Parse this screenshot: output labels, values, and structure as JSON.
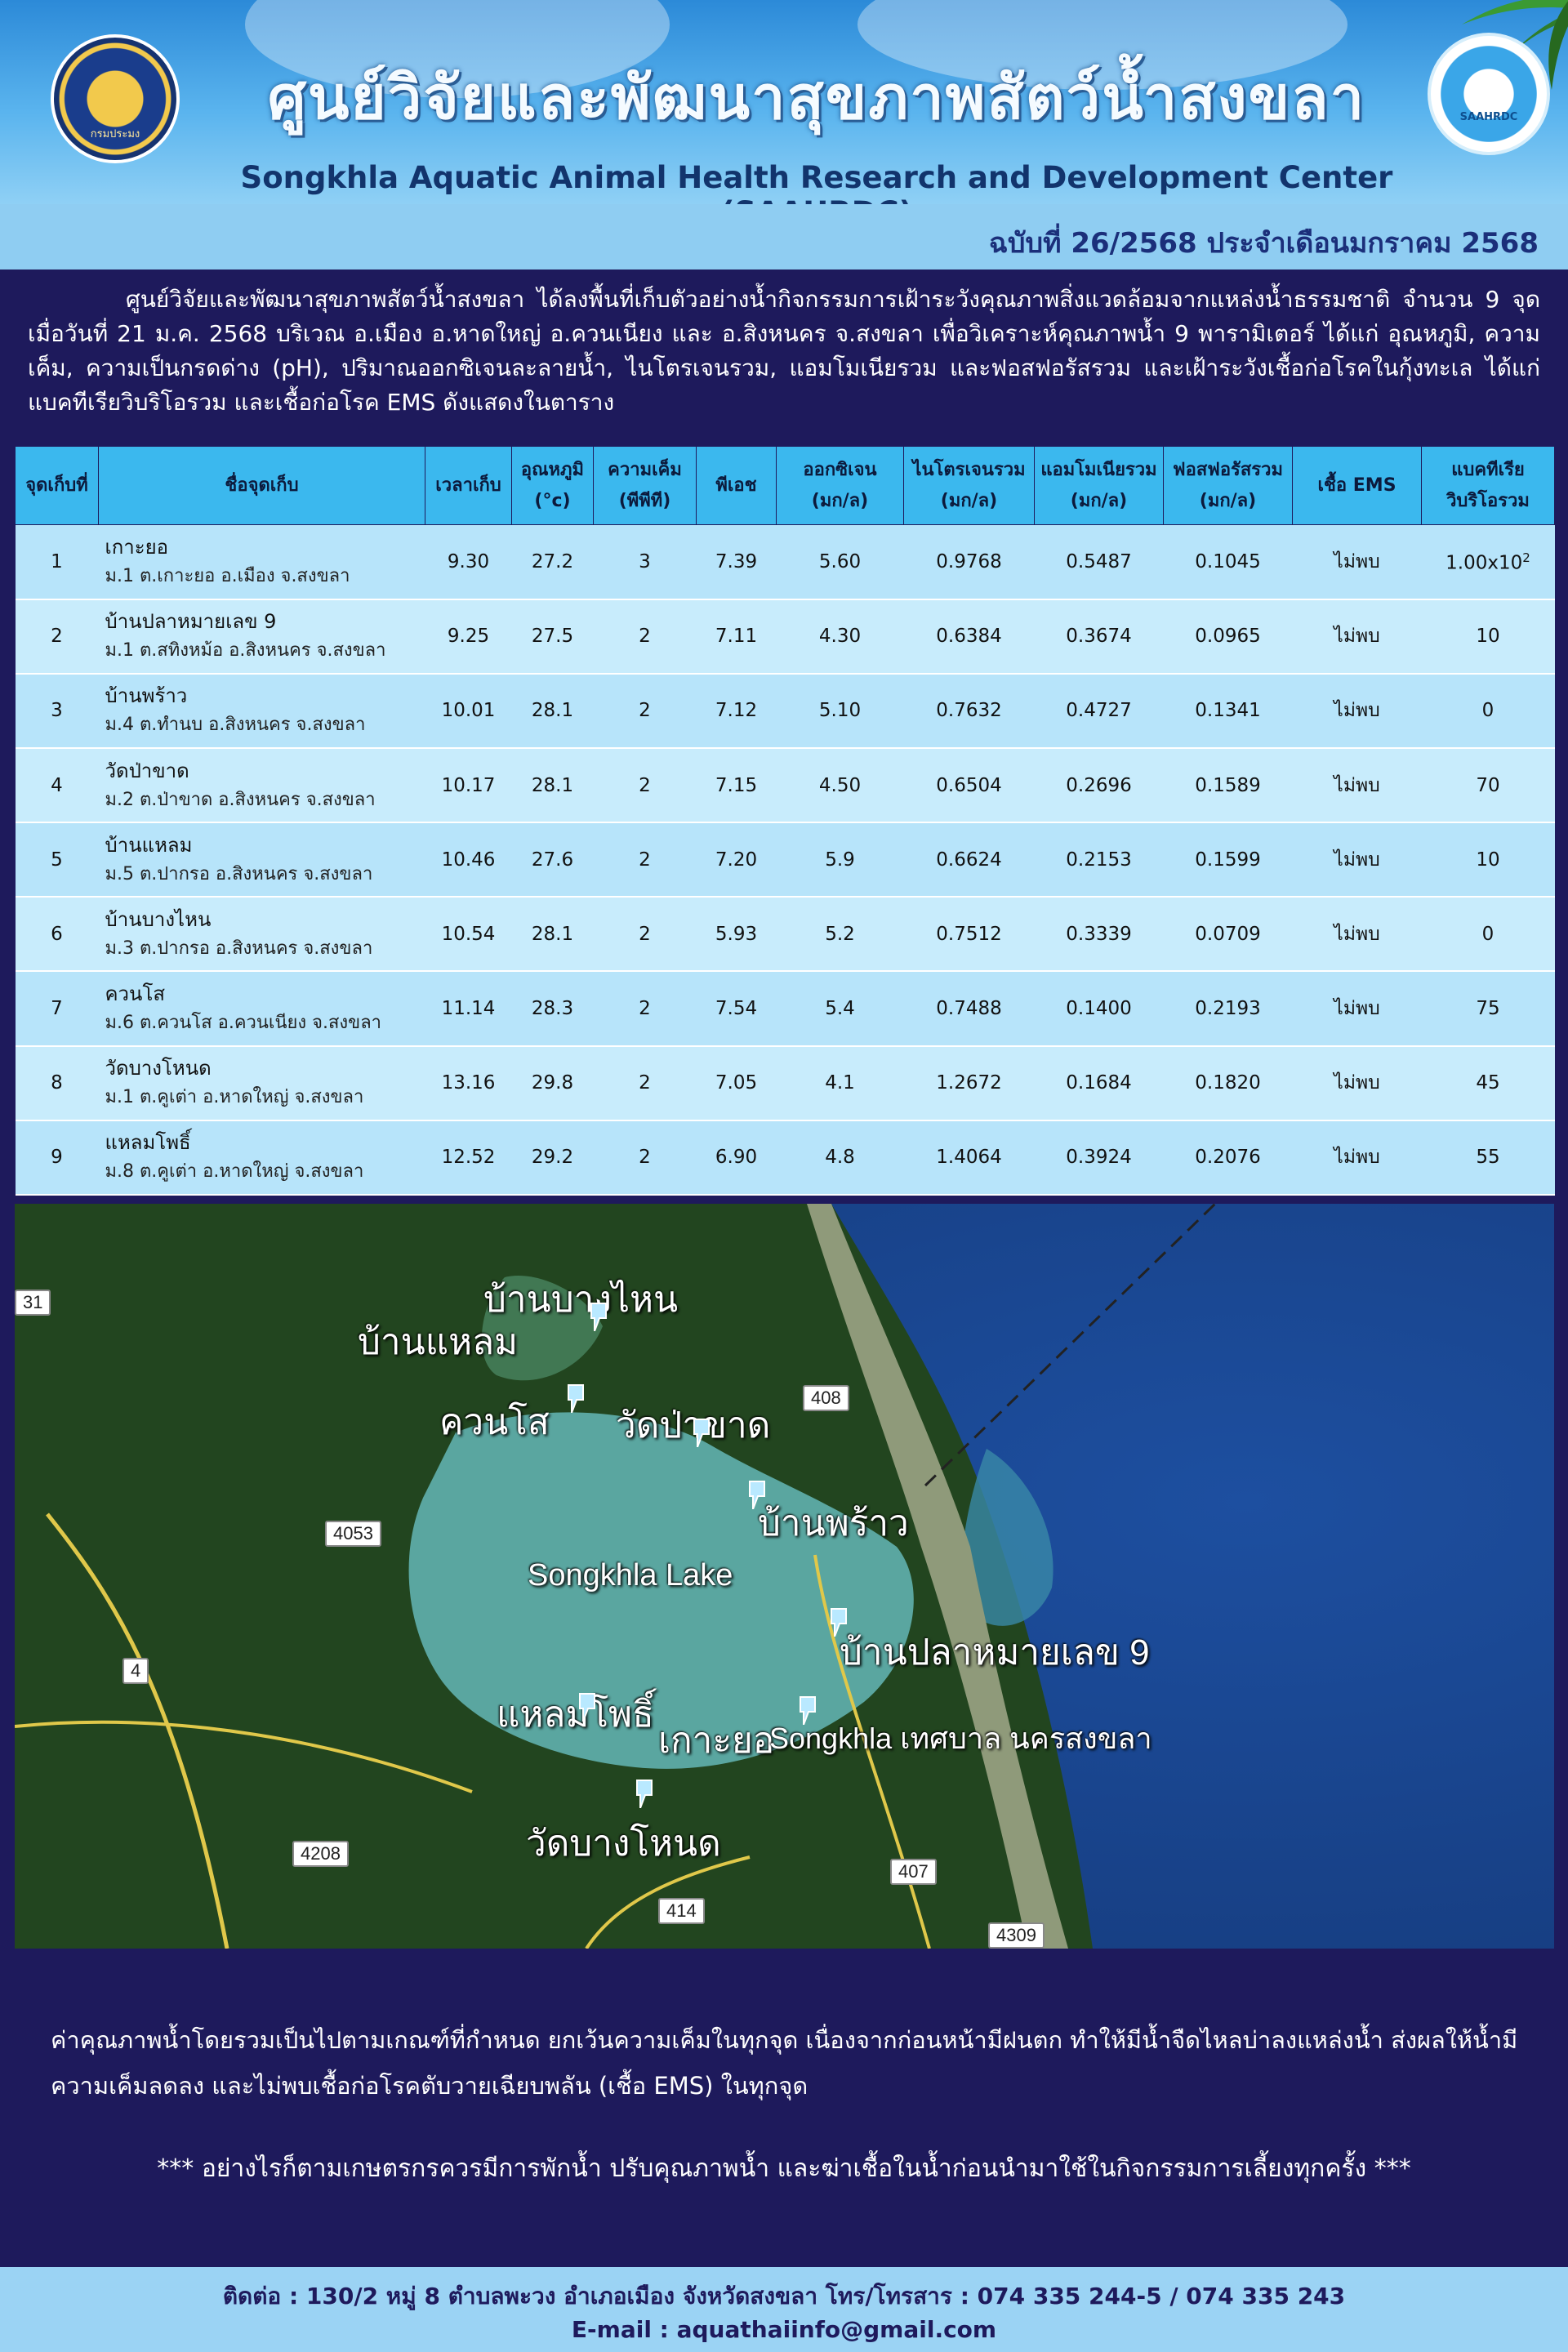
{
  "header": {
    "title_th": "ศูนย์วิจัยและพัฒนาสุขภาพสัตว์น้ำสงขลา",
    "title_en": "Songkhla Aquatic Animal Health Research and Development Center (SAAHRDC)",
    "logo_left_text": "กรมประมง",
    "logo_right_text": "SAAHRDC"
  },
  "issue": "ฉบับที่ 26/2568 ประจำเดือนมกราคม 2568",
  "intro": "ศูนย์วิจัยและพัฒนาสุขภาพสัตว์น้ำสงขลา ได้ลงพื้นที่เก็บตัวอย่างน้ำกิจกรรมการเฝ้าระวังคุณภาพสิ่งแวดล้อมจากแหล่งน้ำธรรมชาติ จำนวน 9 จุด เมื่อวันที่ 21 ม.ค. 2568 บริเวณ อ.เมือง อ.หาดใหญ่ อ.ควนเนียง และ อ.สิงหนคร จ.สงขลา เพื่อวิเคราะห์คุณภาพน้ำ 9 พารามิเตอร์ ได้แก่ อุณหภูมิ, ความเค็ม, ความเป็นกรดด่าง (pH), ปริมาณออกซิเจนละลายน้ำ, ไนโตรเจนรวม, แอมโมเนียรวม และฟอสฟอรัสรวม และเฝ้าระวังเชื้อก่อโรคในกุ้งทะเล ได้แก่ แบคทีเรียวิบริโอรวม  และเชื้อก่อโรค EMS ดังแสดงในตาราง",
  "table": {
    "headers": {
      "point": "จุดเก็บที่",
      "name": "ชื่อจุดเก็บ",
      "time": "เวลาเก็บ",
      "temp_1": "อุณหภูมิ",
      "temp_2": "(°c)",
      "sal_1": "ความเค็ม",
      "sal_2": "(พีพีที)",
      "ph": "พีเอช",
      "do_1": "ออกซิเจน",
      "do_2": "(มก/ล)",
      "tn_1": "ไนโตรเจนรวม",
      "tn_2": "(มก/ล)",
      "nh3_1": "แอมโมเนียรวม",
      "nh3_2": "(มก/ล)",
      "tp_1": "ฟอสฟอรัสรวม",
      "tp_2": "(มก/ล)",
      "ems": "เชื้อ EMS",
      "vib_1": "แบคทีเรีย",
      "vib_2": "วิบริโอรวม"
    },
    "rows": [
      {
        "no": "1",
        "name": "เกาะยอ",
        "addr": "ม.1 ต.เกาะยอ อ.เมือง จ.สงขลา",
        "time": "9.30",
        "temp": "27.2",
        "sal": "3",
        "ph": "7.39",
        "do": "5.60",
        "tn": "0.9768",
        "nh3": "0.5487",
        "tp": "0.1045",
        "ems": "ไม่พบ",
        "vib": "1.00x10",
        "vib_sup": "2"
      },
      {
        "no": "2",
        "name": "บ้านปลาหมายเลข 9",
        "addr": "ม.1 ต.สทิงหม้อ อ.สิงหนคร จ.สงขลา",
        "time": "9.25",
        "temp": "27.5",
        "sal": "2",
        "ph": "7.11",
        "do": "4.30",
        "tn": "0.6384",
        "nh3": "0.3674",
        "tp": "0.0965",
        "ems": "ไม่พบ",
        "vib": "10",
        "vib_sup": ""
      },
      {
        "no": "3",
        "name": "บ้านพร้าว",
        "addr": "ม.4 ต.ทำนบ อ.สิงหนคร จ.สงขลา",
        "time": "10.01",
        "temp": "28.1",
        "sal": "2",
        "ph": "7.12",
        "do": "5.10",
        "tn": "0.7632",
        "nh3": "0.4727",
        "tp": "0.1341",
        "ems": "ไม่พบ",
        "vib": "0",
        "vib_sup": ""
      },
      {
        "no": "4",
        "name": "วัดป่าขาด",
        "addr": "ม.2 ต.ป่าขาด อ.สิงหนคร จ.สงขลา",
        "time": "10.17",
        "temp": "28.1",
        "sal": "2",
        "ph": "7.15",
        "do": "4.50",
        "tn": "0.6504",
        "nh3": "0.2696",
        "tp": "0.1589",
        "ems": "ไม่พบ",
        "vib": "70",
        "vib_sup": ""
      },
      {
        "no": "5",
        "name": "บ้านแหลม",
        "addr": "ม.5 ต.ปากรอ อ.สิงหนคร จ.สงขลา",
        "time": "10.46",
        "temp": "27.6",
        "sal": "2",
        "ph": "7.20",
        "do": "5.9",
        "tn": "0.6624",
        "nh3": "0.2153",
        "tp": "0.1599",
        "ems": "ไม่พบ",
        "vib": "10",
        "vib_sup": ""
      },
      {
        "no": "6",
        "name": "บ้านบางไหน",
        "addr": "ม.3 ต.ปากรอ อ.สิงหนคร จ.สงขลา",
        "time": "10.54",
        "temp": "28.1",
        "sal": "2",
        "ph": "5.93",
        "do": "5.2",
        "tn": "0.7512",
        "nh3": "0.3339",
        "tp": "0.0709",
        "ems": "ไม่พบ",
        "vib": "0",
        "vib_sup": ""
      },
      {
        "no": "7",
        "name": "ควนโส",
        "addr": "ม.6 ต.ควนโส อ.ควนเนียง จ.สงขลา",
        "time": "11.14",
        "temp": "28.3",
        "sal": "2",
        "ph": "7.54",
        "do": "5.4",
        "tn": "0.7488",
        "nh3": "0.1400",
        "tp": "0.2193",
        "ems": "ไม่พบ",
        "vib": "75",
        "vib_sup": ""
      },
      {
        "no": "8",
        "name": "วัดบางโหนด",
        "addr": "ม.1 ต.คูเต่า อ.หาดใหญ่ จ.สงขลา",
        "time": "13.16",
        "temp": "29.8",
        "sal": "2",
        "ph": "7.05",
        "do": "4.1",
        "tn": "1.2672",
        "nh3": "0.1684",
        "tp": "0.1820",
        "ems": "ไม่พบ",
        "vib": "45",
        "vib_sup": ""
      },
      {
        "no": "9",
        "name": "แหลมโพธิ์",
        "addr": "ม.8 ต.คูเต่า อ.หาดใหญ่ จ.สงขลา",
        "time": "12.52",
        "temp": "29.2",
        "sal": "2",
        "ph": "6.90",
        "do": "4.8",
        "tn": "1.4064",
        "nh3": "0.3924",
        "tp": "0.2076",
        "ems": "ไม่พบ",
        "vib": "55",
        "vib_sup": ""
      }
    ]
  },
  "map": {
    "labels": {
      "bang_nai": "บ้านบางไหน",
      "laem": "บ้านแหลม",
      "khuan_so": "ควนโส",
      "pa_khat": "วัดป่าขาด",
      "phrao": "บ้านพร้าว",
      "lake": "Songkhla Lake",
      "pla_9": "บ้านปลาหมายเลข 9",
      "laem_pho": "แหลมโพธิ์",
      "ko_yo": "เกาะยอ",
      "city": "Songkhla เทศบาล นครสงขลา",
      "bang_not": "วัดบางโหนด"
    },
    "roads": [
      "31",
      "408",
      "4053",
      "4",
      "4208",
      "407",
      "414",
      "4309"
    ]
  },
  "summary": "ค่าคุณภาพน้ำโดยรวมเป็นไปตามเกณฑ์ที่กำหนด ยกเว้นความเค็มในทุกจุด เนื่องจากก่อนหน้ามีฝนตก ทำให้มีน้ำจืดไหลบ่าลงแหล่งน้ำ ส่งผลให้น้ำมีความเค็มลดลง และไม่พบเชื้อก่อโรคตับวายเฉียบพลัน (เชื้อ EMS) ในทุกจุด",
  "warning": "*** อย่างไรก็ตามเกษตรกรควรมีการพักน้ำ  ปรับคุณภาพน้ำ และฆ่าเชื้อในน้ำก่อนนำมาใช้ในกิจกรรมการเลี้ยงทุกครั้ง  ***",
  "footer": {
    "contact": "ติดต่อ : 130/2 หมู่ 8 ตำบลพะวง อำเภอเมือง จังหวัดสงขลา โทร/โทรสาร : 074 335 244-5 / 074 335 243",
    "email": "E-mail : aquathaiinfo@gmail.com"
  },
  "colors": {
    "navy": "#1e1a5c",
    "header_blue": "#2c8ad8",
    "table_head": "#3bb8ee",
    "table_row": "#b7e4fa",
    "footer": "#9bd3f4"
  }
}
